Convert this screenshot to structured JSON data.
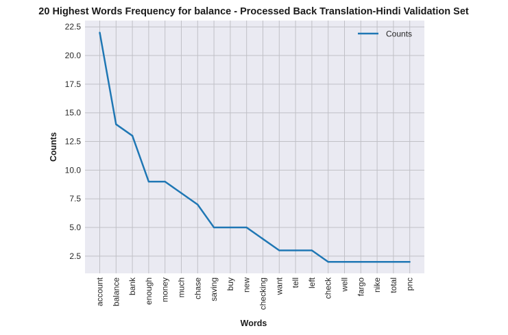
{
  "chart_data": {
    "type": "line",
    "title": "20 Highest Words Frequency for balance - Processed Back Translation-Hindi Validation Set",
    "xlabel": "Words",
    "ylabel": "Counts",
    "categories": [
      "account",
      "balance",
      "bank",
      "enough",
      "money",
      "much",
      "chase",
      "saving",
      "buy",
      "new",
      "checking",
      "want",
      "tell",
      "left",
      "check",
      "well",
      "fargo",
      "nike",
      "total",
      "pnc"
    ],
    "series": [
      {
        "name": "Counts",
        "color": "#1f77b4",
        "values": [
          22,
          14,
          13,
          9,
          9,
          8,
          7,
          5,
          5,
          5,
          4,
          3,
          3,
          3,
          2,
          2,
          2,
          2,
          2,
          2
        ]
      }
    ],
    "ylim": [
      1.0,
      23.05
    ],
    "yticks": [
      2.5,
      5.0,
      7.5,
      10.0,
      12.5,
      15.0,
      17.5,
      20.0,
      22.5
    ],
    "ytick_labels": [
      "2.5",
      "5.0",
      "7.5",
      "10.0",
      "12.5",
      "15.0",
      "17.5",
      "20.0",
      "22.5"
    ],
    "grid": true,
    "legend_position": "top-right",
    "background_color": "#eaeaf2",
    "grid_color": "#c0c0c6"
  }
}
